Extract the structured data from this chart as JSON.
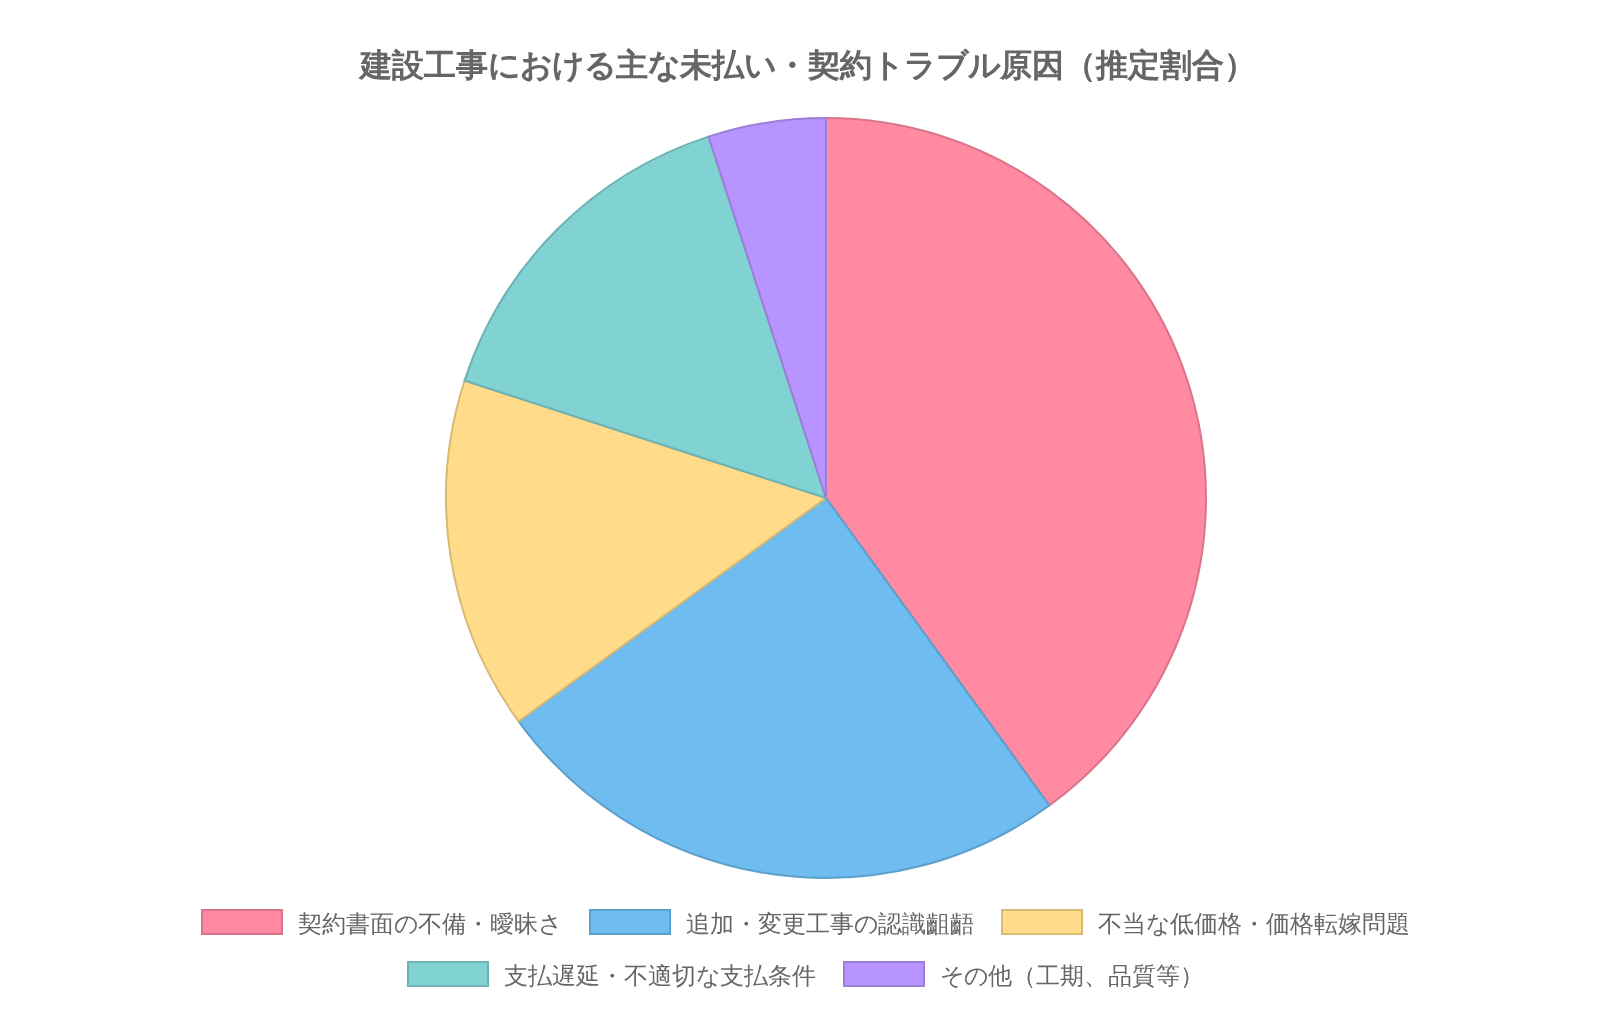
{
  "chart_data": {
    "type": "pie",
    "title": "建設工事における主な未払い・契約トラブル原因（推定割合）",
    "categories": [
      "契約書面の不備・曖昧さ",
      "追加・変更工事の認識齟齬",
      "不当な低価格・価格転嫁問題",
      "支払遅延・不適切な支払条件",
      "その他（工期、品質等）"
    ],
    "values": [
      40,
      25,
      15,
      15,
      5
    ],
    "colors": [
      "#ff8aa2",
      "#6fbcf0",
      "#ffdb8a",
      "#81d3d3",
      "#b794ff"
    ],
    "legend": "bottom"
  }
}
